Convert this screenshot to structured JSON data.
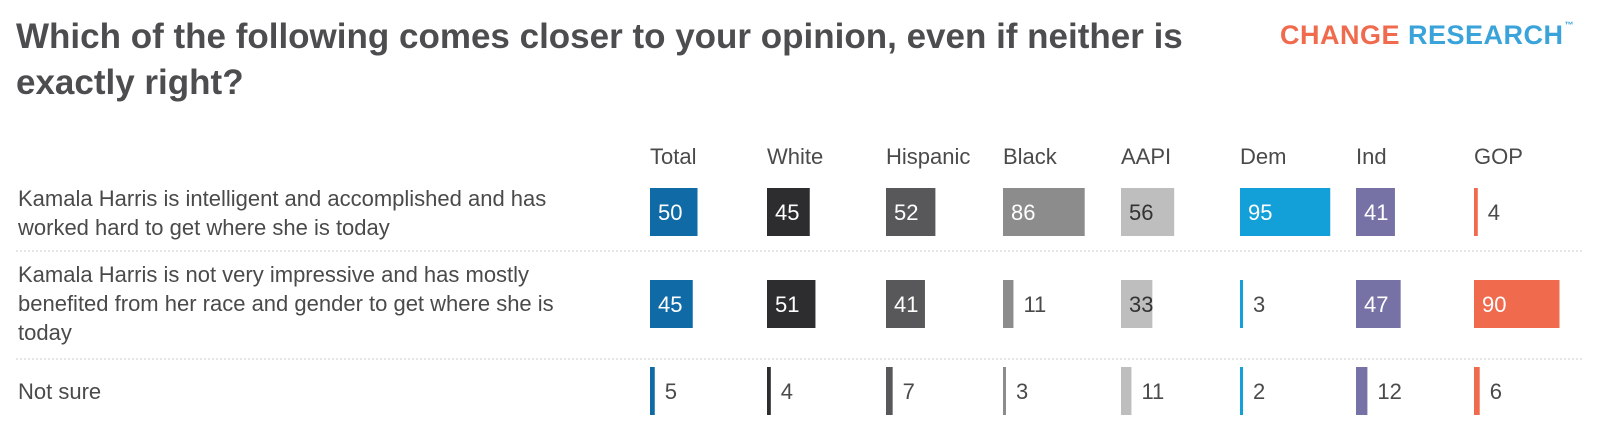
{
  "title": "Which of the following comes closer to your opinion, even if neither is exactly right?",
  "logo": {
    "word1": "CHANGE",
    "word2": "RESEARCH",
    "tm": "™"
  },
  "chart_data": {
    "type": "table",
    "columns": [
      {
        "name": "Total",
        "color": "#0f6aa6",
        "label_color": "#ffffff"
      },
      {
        "name": "White",
        "color": "#2d2d2f",
        "label_color": "#ffffff"
      },
      {
        "name": "Hispanic",
        "color": "#58585a",
        "label_color": "#ffffff"
      },
      {
        "name": "Black",
        "color": "#8c8c8c",
        "label_color": "#ffffff"
      },
      {
        "name": "AAPI",
        "color": "#bebebe",
        "label_color": "#333333"
      },
      {
        "name": "Dem",
        "color": "#139fd8",
        "label_color": "#ffffff"
      },
      {
        "name": "Ind",
        "color": "#7672a6",
        "label_color": "#ffffff"
      },
      {
        "name": "GOP",
        "color": "#f06a4e",
        "label_color": "#ffffff"
      }
    ],
    "rows": [
      {
        "label_lines": [
          "Kamala Harris is intelligent and accomplished and has",
          "worked hard to get where she is today"
        ],
        "values": [
          50,
          45,
          52,
          86,
          56,
          95,
          41,
          4
        ]
      },
      {
        "label_lines": [
          "Kamala Harris is not very impressive and has mostly",
          "benefited from her race and gender to get where she is",
          "today"
        ],
        "values": [
          45,
          51,
          41,
          11,
          33,
          3,
          47,
          90
        ]
      },
      {
        "label_lines": [
          "Not sure"
        ],
        "values": [
          5,
          4,
          7,
          3,
          11,
          2,
          12,
          6
        ]
      }
    ]
  }
}
